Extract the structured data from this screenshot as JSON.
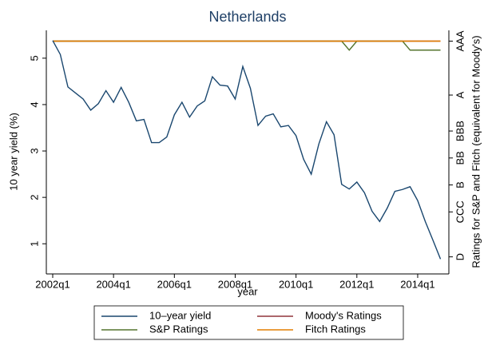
{
  "chart_data": {
    "type": "line",
    "title": "Netherlands",
    "xlabel": "year",
    "ylabel": "10 year yield (%)",
    "y2label": "Ratings for S&P and Fitch (equivalent for Moody's)",
    "x": [
      168,
      169,
      170,
      171,
      172,
      173,
      174,
      175,
      176,
      177,
      178,
      179,
      180,
      181,
      182,
      183,
      184,
      185,
      186,
      187,
      188,
      189,
      190,
      191,
      192,
      193,
      194,
      195,
      196,
      197,
      198,
      199,
      200,
      201,
      202,
      203,
      204,
      205,
      206,
      207,
      208,
      209,
      210,
      211,
      212,
      213,
      214,
      215,
      216,
      217,
      218,
      219
    ],
    "series": [
      {
        "name": "10–year yield",
        "color": "#1a476f",
        "values": [
          5.38,
          5.08,
          4.38,
          4.25,
          4.12,
          3.88,
          4.02,
          4.3,
          4.05,
          4.37,
          4.05,
          3.65,
          3.68,
          3.18,
          3.18,
          3.3,
          3.78,
          4.05,
          3.73,
          3.97,
          4.08,
          4.6,
          4.42,
          4.4,
          4.12,
          4.82,
          4.35,
          3.55,
          3.75,
          3.8,
          3.52,
          3.55,
          3.33,
          2.82,
          2.5,
          3.15,
          3.63,
          3.35,
          2.28,
          2.18,
          2.33,
          2.1,
          1.7,
          1.48,
          1.77,
          2.13,
          2.17,
          2.23,
          1.93,
          1.48,
          1.08,
          0.67
        ]
      },
      {
        "name": "Moody's Ratings",
        "color": "#90353b",
        "axis": "y2",
        "values": [
          24,
          24,
          24,
          24,
          24,
          24,
          24,
          24,
          24,
          24,
          24,
          24,
          24,
          24,
          24,
          24,
          24,
          24,
          24,
          24,
          24,
          24,
          24,
          24,
          24,
          24,
          24,
          24,
          24,
          24,
          24,
          24,
          24,
          24,
          24,
          24,
          24,
          24,
          24,
          24,
          24,
          24,
          24,
          24,
          24,
          24,
          24,
          24,
          24,
          24,
          24,
          24
        ]
      },
      {
        "name": "S&P Ratings",
        "color": "#55752f",
        "axis": "y2",
        "values": [
          24,
          24,
          24,
          24,
          24,
          24,
          24,
          24,
          24,
          24,
          24,
          24,
          24,
          24,
          24,
          24,
          24,
          24,
          24,
          24,
          24,
          24,
          24,
          24,
          24,
          24,
          24,
          24,
          24,
          24,
          24,
          24,
          24,
          24,
          24,
          24,
          24,
          24,
          24,
          23,
          24,
          24,
          24,
          24,
          24,
          24,
          24,
          23,
          23,
          23,
          23,
          23
        ]
      },
      {
        "name": "Fitch Ratings",
        "color": "#e37e00",
        "axis": "y2",
        "values": [
          24,
          24,
          24,
          24,
          24,
          24,
          24,
          24,
          24,
          24,
          24,
          24,
          24,
          24,
          24,
          24,
          24,
          24,
          24,
          24,
          24,
          24,
          24,
          24,
          24,
          24,
          24,
          24,
          24,
          24,
          24,
          24,
          24,
          24,
          24,
          24,
          24,
          24,
          24,
          24,
          24,
          24,
          24,
          24,
          24,
          24,
          24,
          24,
          24,
          24,
          24,
          24
        ]
      }
    ],
    "xlim": [
      167.16,
      220.1
    ],
    "xticks": [
      {
        "value": 168,
        "label": "2002q1"
      },
      {
        "value": 176,
        "label": "2004q1"
      },
      {
        "value": 184,
        "label": "2006q1"
      },
      {
        "value": 192,
        "label": "2008q1"
      },
      {
        "value": 200,
        "label": "2010q1"
      },
      {
        "value": 208,
        "label": "2012q1"
      },
      {
        "value": 216,
        "label": "2014q1"
      }
    ],
    "ylim": [
      0.35,
      5.6
    ],
    "yticks": [
      1,
      2,
      3,
      4,
      5
    ],
    "y2lim": [
      -1.9,
      25.2
    ],
    "y2ticks": [
      {
        "value": 0,
        "label": "D"
      },
      {
        "value": 5,
        "label": "CCC"
      },
      {
        "value": 8,
        "label": "B"
      },
      {
        "value": 11,
        "label": "BB"
      },
      {
        "value": 14,
        "label": "BBB"
      },
      {
        "value": 18,
        "label": "A"
      },
      {
        "value": 24,
        "label": "AAA"
      }
    ]
  }
}
